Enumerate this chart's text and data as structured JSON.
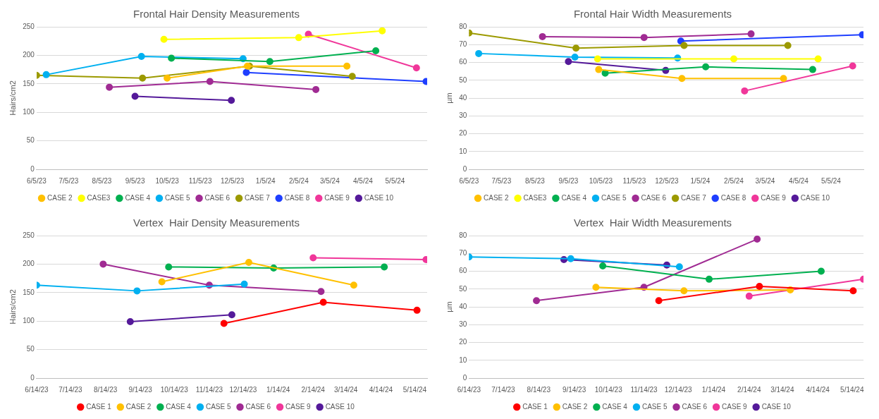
{
  "chart_data": [
    {
      "type": "line",
      "title": "Frontal Hair Density Measurements",
      "ylabel": "Hairs/cm2",
      "xlim": [
        "2023-06-05",
        "2024-06-04"
      ],
      "xticks": [
        {
          "value": "2023-06-05",
          "label": "6/5/23"
        },
        {
          "value": "2023-07-05",
          "label": "7/5/23"
        },
        {
          "value": "2023-08-05",
          "label": "8/5/23"
        },
        {
          "value": "2023-09-05",
          "label": "9/5/23"
        },
        {
          "value": "2023-10-05",
          "label": "10/5/23"
        },
        {
          "value": "2023-11-05",
          "label": "11/5/23"
        },
        {
          "value": "2023-12-05",
          "label": "12/5/23"
        },
        {
          "value": "2024-01-05",
          "label": "1/5/24"
        },
        {
          "value": "2024-02-05",
          "label": "2/5/24"
        },
        {
          "value": "2024-03-05",
          "label": "3/5/24"
        },
        {
          "value": "2024-04-05",
          "label": "4/5/24"
        },
        {
          "value": "2024-05-05",
          "label": "5/5/24"
        }
      ],
      "ylim": [
        0,
        250
      ],
      "yticks": [
        0,
        50,
        100,
        150,
        200,
        250
      ],
      "grid": "y",
      "legend": "bottom",
      "marker": "circle",
      "series": [
        {
          "name": "CASE 2",
          "color": "#ffc000",
          "x": [
            "2023-10-05",
            "2023-12-19",
            "2024-03-21"
          ],
          "values": [
            160,
            181,
            181
          ]
        },
        {
          "name": "CASE3",
          "color": "#ffff00",
          "x": [
            "2023-10-02",
            "2024-02-05",
            "2024-04-23"
          ],
          "values": [
            228,
            231,
            243
          ]
        },
        {
          "name": "CASE 4",
          "color": "#00b050",
          "x": [
            "2023-10-09",
            "2024-01-09",
            "2024-04-17"
          ],
          "values": [
            195,
            189,
            208
          ]
        },
        {
          "name": "CASE 5",
          "color": "#00b0f0",
          "x": [
            "2023-06-14",
            "2023-09-11",
            "2023-12-15"
          ],
          "values": [
            166,
            198,
            194
          ]
        },
        {
          "name": "CASE 6",
          "color": "#a02b93",
          "x": [
            "2023-08-12",
            "2023-11-14",
            "2024-02-21"
          ],
          "values": [
            144,
            154,
            140
          ]
        },
        {
          "name": "CASE 7",
          "color": "#9c9a00",
          "x": [
            "2023-06-05",
            "2023-09-12",
            "2023-12-21",
            "2024-03-26"
          ],
          "values": [
            165,
            160,
            181,
            163
          ]
        },
        {
          "name": "CASE 8",
          "color": "#1f3fff",
          "x": [
            "2023-12-18",
            "2024-06-03"
          ],
          "values": [
            170,
            154
          ]
        },
        {
          "name": "CASE 9",
          "color": "#f0379a",
          "x": [
            "2024-02-14",
            "2024-05-25"
          ],
          "values": [
            237,
            178
          ]
        },
        {
          "name": "CASE 10",
          "color": "#551a9a",
          "x": [
            "2023-09-05",
            "2023-12-04"
          ],
          "values": [
            128,
            121
          ]
        }
      ]
    },
    {
      "type": "line",
      "title": "Frontal Hair Width Measurements",
      "ylabel": "µm",
      "xlim": [
        "2023-06-05",
        "2024-06-04"
      ],
      "xticks": [
        {
          "value": "2023-06-05",
          "label": "6/5/23"
        },
        {
          "value": "2023-07-05",
          "label": "7/5/23"
        },
        {
          "value": "2023-08-05",
          "label": "8/5/23"
        },
        {
          "value": "2023-09-05",
          "label": "9/5/23"
        },
        {
          "value": "2023-10-05",
          "label": "10/5/23"
        },
        {
          "value": "2023-11-05",
          "label": "11/5/23"
        },
        {
          "value": "2023-12-05",
          "label": "12/5/23"
        },
        {
          "value": "2024-01-05",
          "label": "1/5/24"
        },
        {
          "value": "2024-02-05",
          "label": "2/5/24"
        },
        {
          "value": "2024-03-05",
          "label": "3/5/24"
        },
        {
          "value": "2024-04-05",
          "label": "4/5/24"
        },
        {
          "value": "2024-05-05",
          "label": "5/5/24"
        }
      ],
      "ylim": [
        0,
        80
      ],
      "yticks": [
        0,
        10,
        20,
        30,
        40,
        50,
        60,
        70,
        80
      ],
      "grid": "y",
      "legend": "bottom",
      "marker": "circle",
      "series": [
        {
          "name": "CASE 2",
          "color": "#ffc000",
          "x": [
            "2023-10-03",
            "2023-12-19",
            "2024-03-22"
          ],
          "values": [
            56,
            51,
            51
          ]
        },
        {
          "name": "CASE3",
          "color": "#ffff00",
          "x": [
            "2023-10-02",
            "2024-02-05",
            "2024-04-23"
          ],
          "values": [
            62,
            62,
            62
          ]
        },
        {
          "name": "CASE 4",
          "color": "#00b050",
          "x": [
            "2023-10-09",
            "2024-01-10",
            "2024-04-18"
          ],
          "values": [
            54,
            57.5,
            56
          ]
        },
        {
          "name": "CASE 5",
          "color": "#00b0f0",
          "x": [
            "2023-06-14",
            "2023-09-11",
            "2023-12-15"
          ],
          "values": [
            65,
            63,
            62.5
          ]
        },
        {
          "name": "CASE 6",
          "color": "#a02b93",
          "x": [
            "2023-08-12",
            "2023-11-14",
            "2024-02-21"
          ],
          "values": [
            74.5,
            74,
            76
          ]
        },
        {
          "name": "CASE 7",
          "color": "#9c9a00",
          "x": [
            "2023-06-05",
            "2023-09-12",
            "2023-12-21",
            "2024-03-26"
          ],
          "values": [
            76.5,
            68,
            69.5,
            69.5
          ]
        },
        {
          "name": "CASE 8",
          "color": "#1f3fff",
          "x": [
            "2023-12-18",
            "2024-06-03"
          ],
          "values": [
            72,
            75.5
          ]
        },
        {
          "name": "CASE 9",
          "color": "#f0379a",
          "x": [
            "2024-02-15",
            "2024-05-25"
          ],
          "values": [
            44,
            58
          ]
        },
        {
          "name": "CASE 10",
          "color": "#551a9a",
          "x": [
            "2023-09-05",
            "2023-12-04"
          ],
          "values": [
            60.5,
            55.5
          ]
        }
      ]
    },
    {
      "type": "line",
      "title": "Vertex  Hair Density Measurements",
      "ylabel": "Hairs/cm2",
      "xlim": [
        "2023-06-14",
        "2024-05-25"
      ],
      "xticks": [
        {
          "value": "2023-06-14",
          "label": "6/14/23"
        },
        {
          "value": "2023-07-14",
          "label": "7/14/23"
        },
        {
          "value": "2023-08-14",
          "label": "8/14/23"
        },
        {
          "value": "2023-09-14",
          "label": "9/14/23"
        },
        {
          "value": "2023-10-14",
          "label": "10/14/23"
        },
        {
          "value": "2023-11-14",
          "label": "11/14/23"
        },
        {
          "value": "2023-12-14",
          "label": "12/14/23"
        },
        {
          "value": "2024-01-14",
          "label": "1/14/24"
        },
        {
          "value": "2024-02-14",
          "label": "2/14/24"
        },
        {
          "value": "2024-03-14",
          "label": "3/14/24"
        },
        {
          "value": "2024-04-14",
          "label": "4/14/24"
        },
        {
          "value": "2024-05-14",
          "label": "5/14/24"
        }
      ],
      "ylim": [
        0,
        250
      ],
      "yticks": [
        0,
        50,
        100,
        150,
        200,
        250
      ],
      "grid": "y",
      "legend": "bottom",
      "marker": "circle",
      "series": [
        {
          "name": "CASE 1",
          "color": "#ff0000",
          "x": [
            "2023-11-27",
            "2024-02-23",
            "2024-05-16"
          ],
          "values": [
            96,
            133,
            119
          ]
        },
        {
          "name": "CASE 2",
          "color": "#ffc000",
          "x": [
            "2023-10-03",
            "2023-12-19",
            "2024-03-21"
          ],
          "values": [
            169,
            203,
            163
          ]
        },
        {
          "name": "CASE 4",
          "color": "#00b050",
          "x": [
            "2023-10-09",
            "2024-01-10",
            "2024-04-17"
          ],
          "values": [
            195,
            193,
            195
          ]
        },
        {
          "name": "CASE 5",
          "color": "#00b0f0",
          "x": [
            "2023-06-14",
            "2023-09-11",
            "2023-12-15"
          ],
          "values": [
            163,
            153,
            165
          ]
        },
        {
          "name": "CASE 6",
          "color": "#a02b93",
          "x": [
            "2023-08-12",
            "2023-11-14",
            "2024-02-21"
          ],
          "values": [
            200,
            163,
            152
          ]
        },
        {
          "name": "CASE 9",
          "color": "#f0379a",
          "x": [
            "2024-02-14",
            "2024-05-24"
          ],
          "values": [
            211,
            208
          ]
        },
        {
          "name": "CASE 10",
          "color": "#551a9a",
          "x": [
            "2023-09-05",
            "2023-12-04"
          ],
          "values": [
            99,
            111
          ]
        }
      ]
    },
    {
      "type": "line",
      "title": "Vertex  Hair Width Measurements",
      "ylabel": "µm",
      "xlim": [
        "2023-06-14",
        "2024-05-24"
      ],
      "xticks": [
        {
          "value": "2023-06-14",
          "label": "6/14/23"
        },
        {
          "value": "2023-07-14",
          "label": "7/14/23"
        },
        {
          "value": "2023-08-14",
          "label": "8/14/23"
        },
        {
          "value": "2023-09-14",
          "label": "9/14/23"
        },
        {
          "value": "2023-10-14",
          "label": "10/14/23"
        },
        {
          "value": "2023-11-14",
          "label": "11/14/23"
        },
        {
          "value": "2023-12-14",
          "label": "12/14/23"
        },
        {
          "value": "2024-01-14",
          "label": "1/14/24"
        },
        {
          "value": "2024-02-14",
          "label": "2/14/24"
        },
        {
          "value": "2024-03-14",
          "label": "3/14/24"
        },
        {
          "value": "2024-04-14",
          "label": "4/14/24"
        },
        {
          "value": "2024-05-14",
          "label": "5/14/24"
        }
      ],
      "ylim": [
        0,
        80
      ],
      "yticks": [
        0,
        10,
        20,
        30,
        40,
        50,
        60,
        70,
        80
      ],
      "grid": "y",
      "legend": "bottom",
      "marker": "circle",
      "series": [
        {
          "name": "CASE 1",
          "color": "#ff0000",
          "x": [
            "2023-11-27",
            "2024-02-23",
            "2024-05-15"
          ],
          "values": [
            43.5,
            51.5,
            49
          ]
        },
        {
          "name": "CASE 2",
          "color": "#ffc000",
          "x": [
            "2023-10-03",
            "2023-12-19",
            "2024-03-21"
          ],
          "values": [
            51,
            49,
            49.5
          ]
        },
        {
          "name": "CASE 4",
          "color": "#00b050",
          "x": [
            "2023-10-09",
            "2024-01-10",
            "2024-04-17"
          ],
          "values": [
            63,
            55.5,
            60
          ]
        },
        {
          "name": "CASE 5",
          "color": "#00b0f0",
          "x": [
            "2023-06-14",
            "2023-09-11",
            "2023-12-15"
          ],
          "values": [
            68,
            67,
            62.5
          ]
        },
        {
          "name": "CASE 6",
          "color": "#a02b93",
          "x": [
            "2023-08-12",
            "2023-11-14",
            "2024-02-21"
          ],
          "values": [
            43.5,
            51,
            78
          ]
        },
        {
          "name": "CASE 9",
          "color": "#f0379a",
          "x": [
            "2024-02-14",
            "2024-05-24"
          ],
          "values": [
            46,
            55.5
          ]
        },
        {
          "name": "CASE 10",
          "color": "#551a9a",
          "x": [
            "2023-09-05",
            "2023-12-04"
          ],
          "values": [
            66.5,
            63.5
          ]
        }
      ]
    }
  ]
}
